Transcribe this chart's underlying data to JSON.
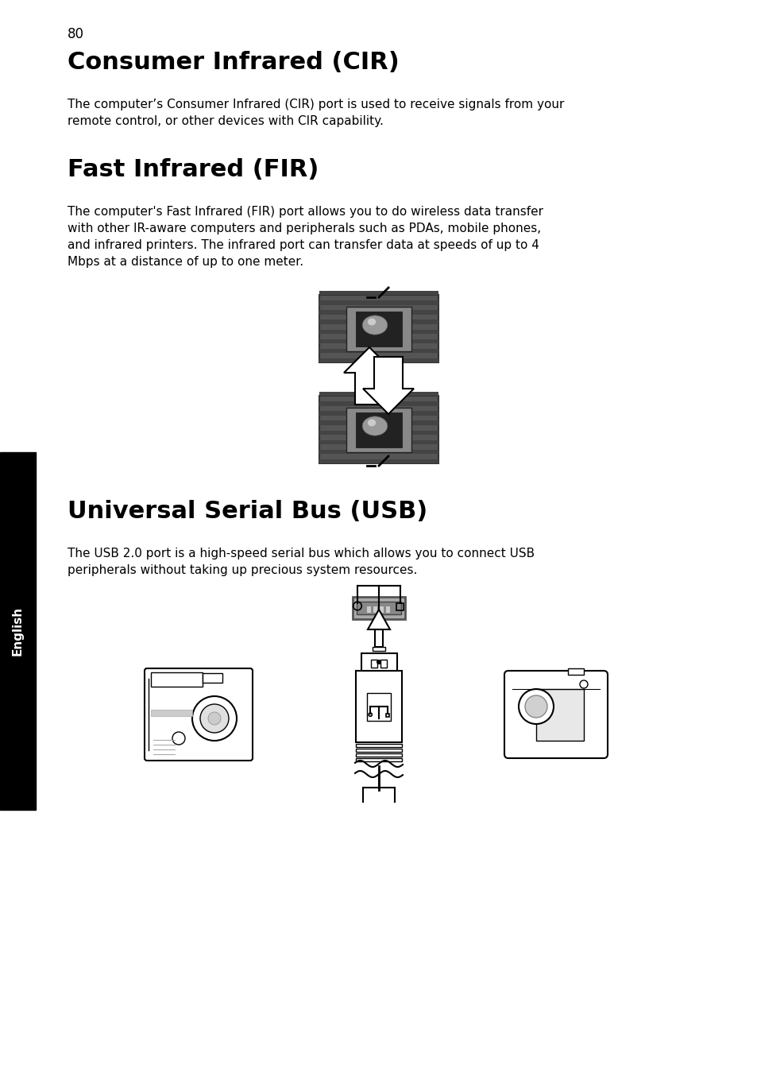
{
  "page_number": "80",
  "section1_title": "Consumer Infrared (CIR)",
  "section1_body": "The computer’s Consumer Infrared (CIR) port is used to receive signals from your\nremote control, or other devices with CIR capability.",
  "section2_title": "Fast Infrared (FIR)",
  "section2_body": "The computer's Fast Infrared (FIR) port allows you to do wireless data transfer\nwith other IR-aware computers and peripherals such as PDAs, mobile phones,\nand infrared printers. The infrared port can transfer data at speeds of up to 4\nMbps at a distance of up to one meter.",
  "section3_title": "Universal Serial Bus (USB)",
  "section3_body": "The USB 2.0 port is a high-speed serial bus which allows you to connect USB\nperipherals without taking up precious system resources.",
  "bg_color": "#ffffff",
  "text_color": "#000000",
  "sidebar_bg": "#000000",
  "sidebar_text": "#ffffff",
  "sidebar_label": "English",
  "title_fontsize": 22,
  "body_fontsize": 11,
  "page_num_fontsize": 12
}
